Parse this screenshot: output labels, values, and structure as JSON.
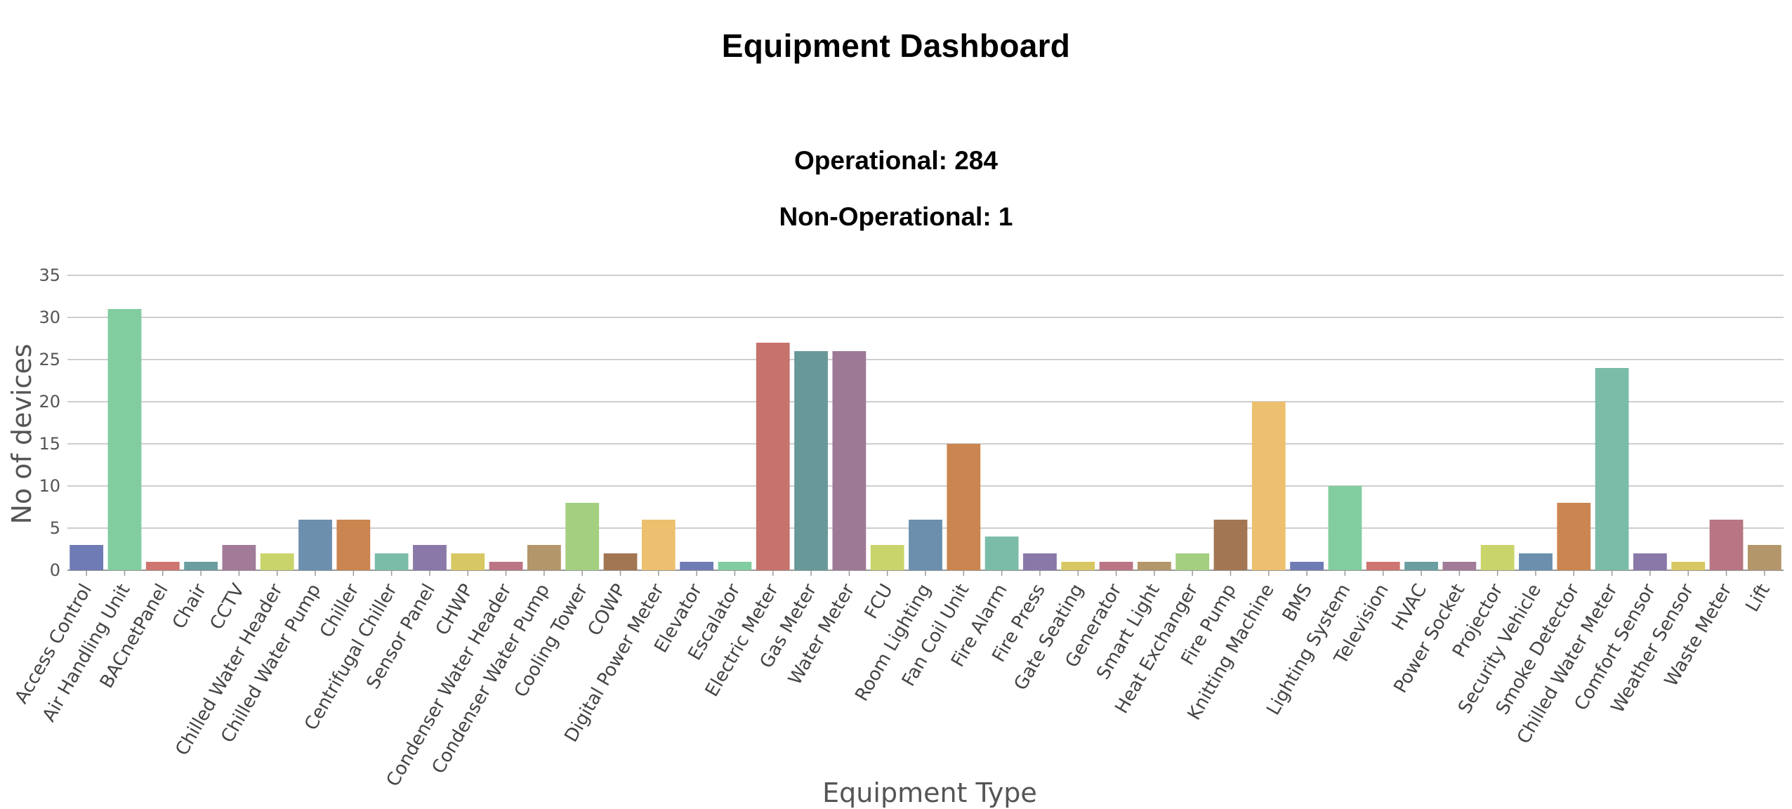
{
  "header": {
    "title": "Equipment Dashboard",
    "operational_text": "Operational: 284",
    "non_operational_text": "Non-Operational: 1"
  },
  "chart_data": {
    "type": "bar",
    "xlabel": "Equipment Type",
    "ylabel": "No of devices",
    "ylim": [
      0,
      35
    ],
    "yticks": [
      0,
      5,
      10,
      15,
      20,
      25,
      30,
      35
    ],
    "grid": true,
    "categories": [
      "Access Control",
      "Air Handling Unit",
      "BACnetPanel",
      "Chair",
      "CCTV",
      "Chilled Water Header",
      "Chilled Water Pump",
      "Chiller",
      "Centrifugal Chiller",
      "Sensor Panel",
      "CHWP",
      "Condenser Water Header",
      "Condenser Water Pump",
      "Cooling Tower",
      "COWP",
      "Digital Power Meter",
      "Elevator",
      "Escalator",
      "Electric Meter",
      "Gas Meter",
      "Water Meter",
      "FCU",
      "Room Lighting",
      "Fan Coil Unit",
      "Fire Alarm",
      "Fire Press",
      "Gate Seating",
      "Generator",
      "Smart Light",
      "Heat Exchanger",
      "Fire Pump",
      "Knitting Machine",
      "BMS",
      "Lighting System",
      "Television",
      "HVAC",
      "Power Socket",
      "Projector",
      "Security Vehicle",
      "Smoke Detector",
      "Chilled Water Meter",
      "Comfort Sensor",
      "Weather Sensor",
      "Waste Meter",
      "Lift"
    ],
    "values": [
      3,
      31,
      1,
      1,
      3,
      2,
      6,
      6,
      2,
      3,
      2,
      1,
      3,
      8,
      2,
      6,
      1,
      1,
      27,
      26,
      26,
      3,
      6,
      15,
      4,
      2,
      1,
      1,
      1,
      2,
      6,
      20,
      1,
      10,
      1,
      1,
      1,
      3,
      2,
      8,
      24,
      2,
      1,
      6,
      3
    ],
    "colors": [
      "#6f7bb5",
      "#82cda0",
      "#cf7571",
      "#6a9ea0",
      "#a17b98",
      "#c9d46a",
      "#6b8fad",
      "#cb8550",
      "#7bbca9",
      "#8a78a8",
      "#d8c864",
      "#bb7585",
      "#b3976a",
      "#a4cf80",
      "#a37653",
      "#ecc06e",
      "#6f7bb5",
      "#82cda0",
      "#c7736d",
      "#68989a",
      "#9e7996",
      "#c9d46a",
      "#6b8fad",
      "#cb8550",
      "#7bbca9",
      "#8a78a8",
      "#d8c864",
      "#bb7585",
      "#b3976a",
      "#a4cf80",
      "#a37653",
      "#ecc06e",
      "#6f7bb5",
      "#82cda0",
      "#cf7571",
      "#6a9ea0",
      "#a17b98",
      "#c9d46a",
      "#6b8fad",
      "#cb8550",
      "#7bbca9",
      "#8a78a8",
      "#d8c864",
      "#b87583",
      "#b3976a"
    ]
  }
}
